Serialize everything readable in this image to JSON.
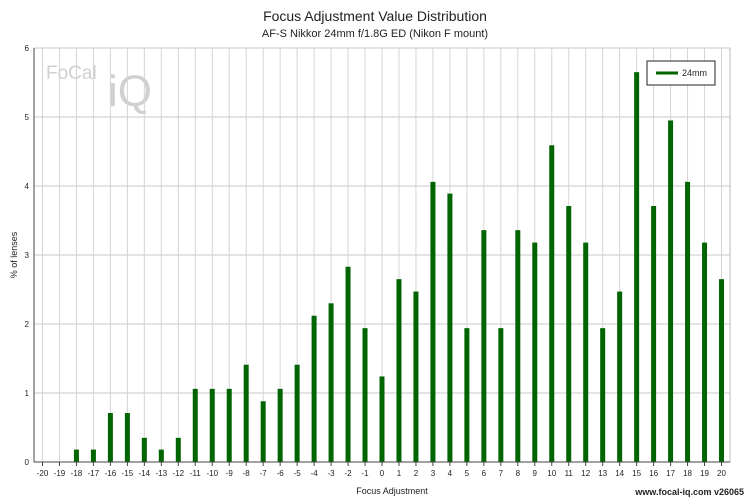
{
  "chart_data": {
    "type": "bar",
    "title": "Focus Adjustment Value Distribution",
    "subtitle": "AF-S Nikkor 24mm f/1.8G ED (Nikon F mount)",
    "xlabel": "Focus Adjustment",
    "ylabel": "% of lenses",
    "ylim": [
      0,
      6
    ],
    "yticks": [
      "0",
      "1",
      "2",
      "3",
      "4",
      "5",
      "6"
    ],
    "xlim": [
      -20,
      20
    ],
    "grid": true,
    "legend_position": "top-right",
    "bar_color": "#006400",
    "categories": [
      -20,
      -19,
      -18,
      -17,
      -16,
      -15,
      -14,
      -13,
      -12,
      -11,
      -10,
      -9,
      -8,
      -7,
      -6,
      -5,
      -4,
      -3,
      -2,
      -1,
      0,
      1,
      2,
      3,
      4,
      5,
      6,
      7,
      8,
      9,
      10,
      11,
      12,
      13,
      14,
      15,
      16,
      17,
      18,
      19,
      20
    ],
    "series": [
      {
        "name": "24mm",
        "values": [
          0,
          0,
          0.18,
          0.18,
          0.71,
          0.71,
          0.35,
          0.18,
          0.35,
          1.06,
          1.06,
          1.06,
          1.41,
          0.88,
          1.06,
          1.41,
          2.12,
          2.3,
          2.83,
          1.94,
          1.24,
          2.65,
          2.47,
          4.06,
          3.89,
          1.94,
          3.36,
          1.94,
          3.36,
          3.18,
          4.59,
          3.71,
          3.18,
          1.94,
          2.47,
          5.65,
          3.71,
          4.95,
          4.06,
          3.18,
          2.65
        ]
      }
    ]
  },
  "watermark": {
    "focal": "FoCal",
    "iq": "iQ"
  },
  "footer": "www.focal-iq.com  v26065"
}
